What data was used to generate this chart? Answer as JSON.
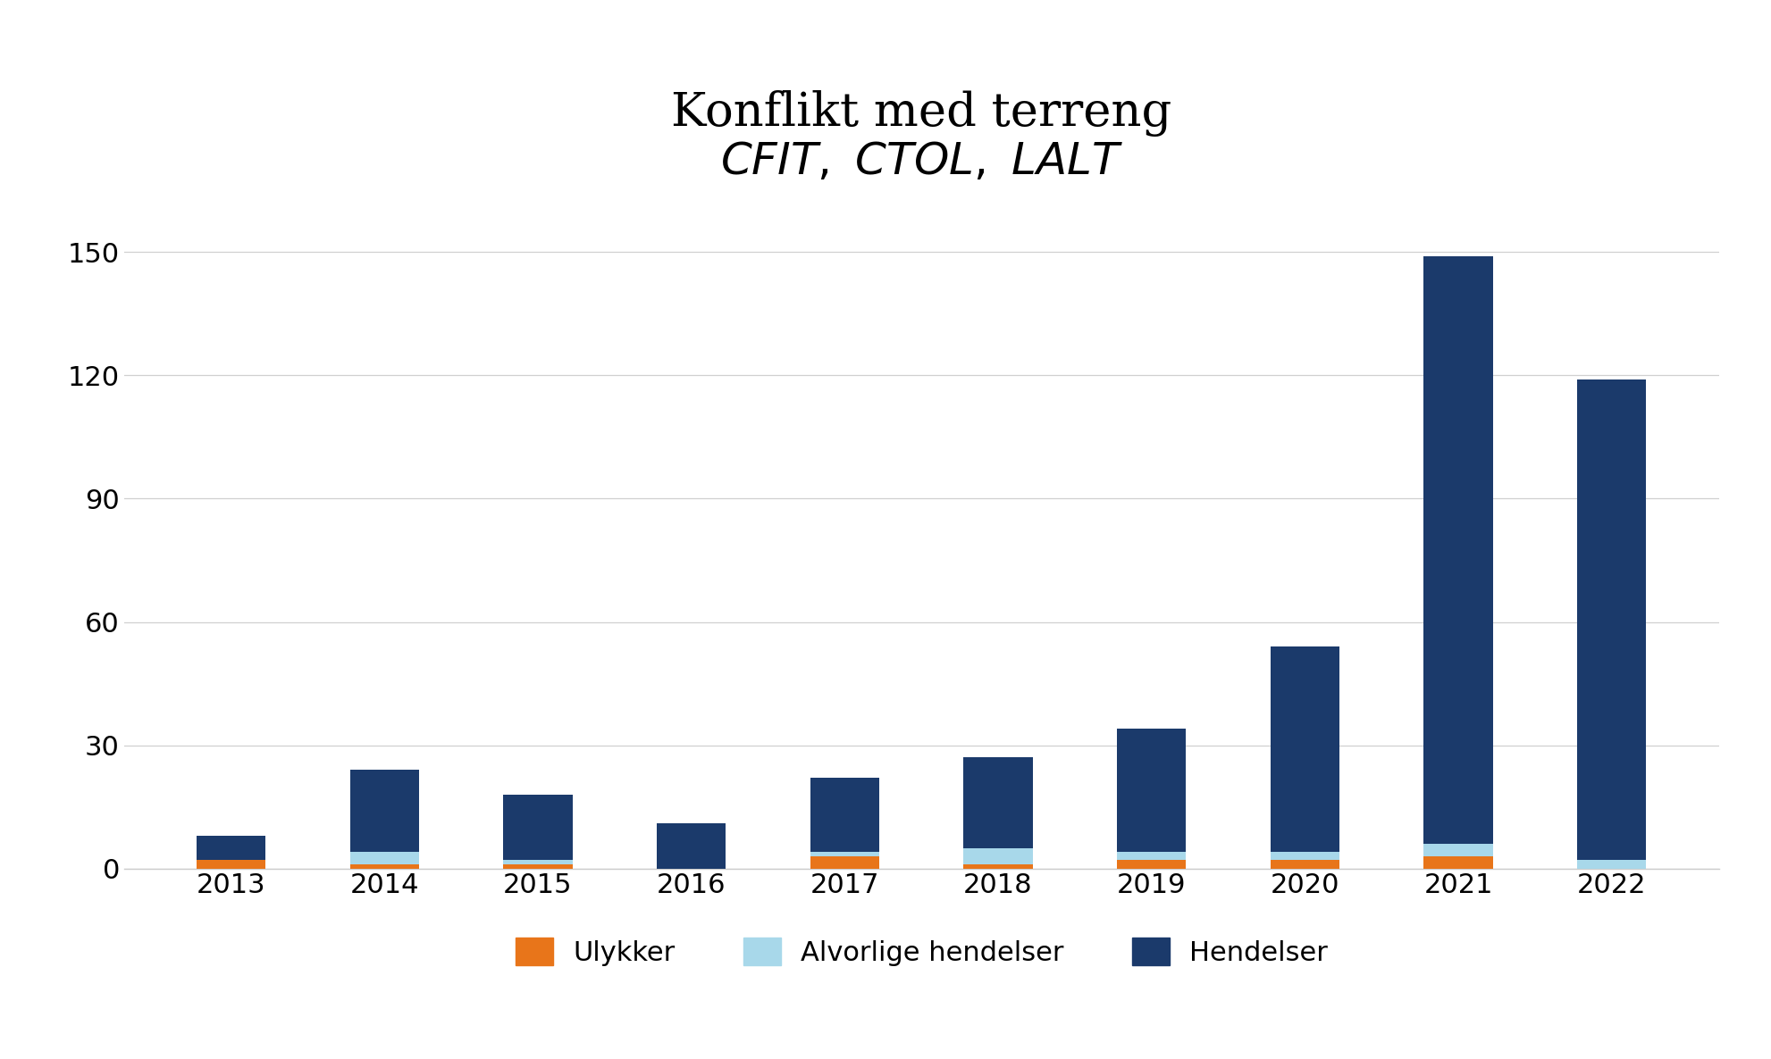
{
  "years": [
    "2013",
    "2014",
    "2015",
    "2016",
    "2017",
    "2018",
    "2019",
    "2020",
    "2021",
    "2022"
  ],
  "ulykker": [
    2,
    1,
    1,
    0,
    3,
    1,
    2,
    2,
    3,
    0
  ],
  "alvorlige_hendelser": [
    0,
    3,
    1,
    0,
    1,
    4,
    2,
    2,
    3,
    2
  ],
  "hendelser": [
    6,
    20,
    16,
    11,
    18,
    22,
    30,
    50,
    143,
    117
  ],
  "color_ulykker": "#E8751A",
  "color_alvorlige": "#A8D8EA",
  "color_hendelser": "#1B3A6B",
  "title_line1": "Konflikt med terreng",
  "legend_ulykker": "Ulykker",
  "legend_alvorlige": "Alvorlige hendelser",
  "legend_hendelser": "Hendelser",
  "yticks": [
    0,
    30,
    60,
    90,
    120,
    150
  ],
  "ylim": [
    0,
    165
  ],
  "background_color": "#ffffff",
  "title_fontsize": 38,
  "tick_fontsize": 22,
  "legend_fontsize": 22,
  "bar_width": 0.45
}
